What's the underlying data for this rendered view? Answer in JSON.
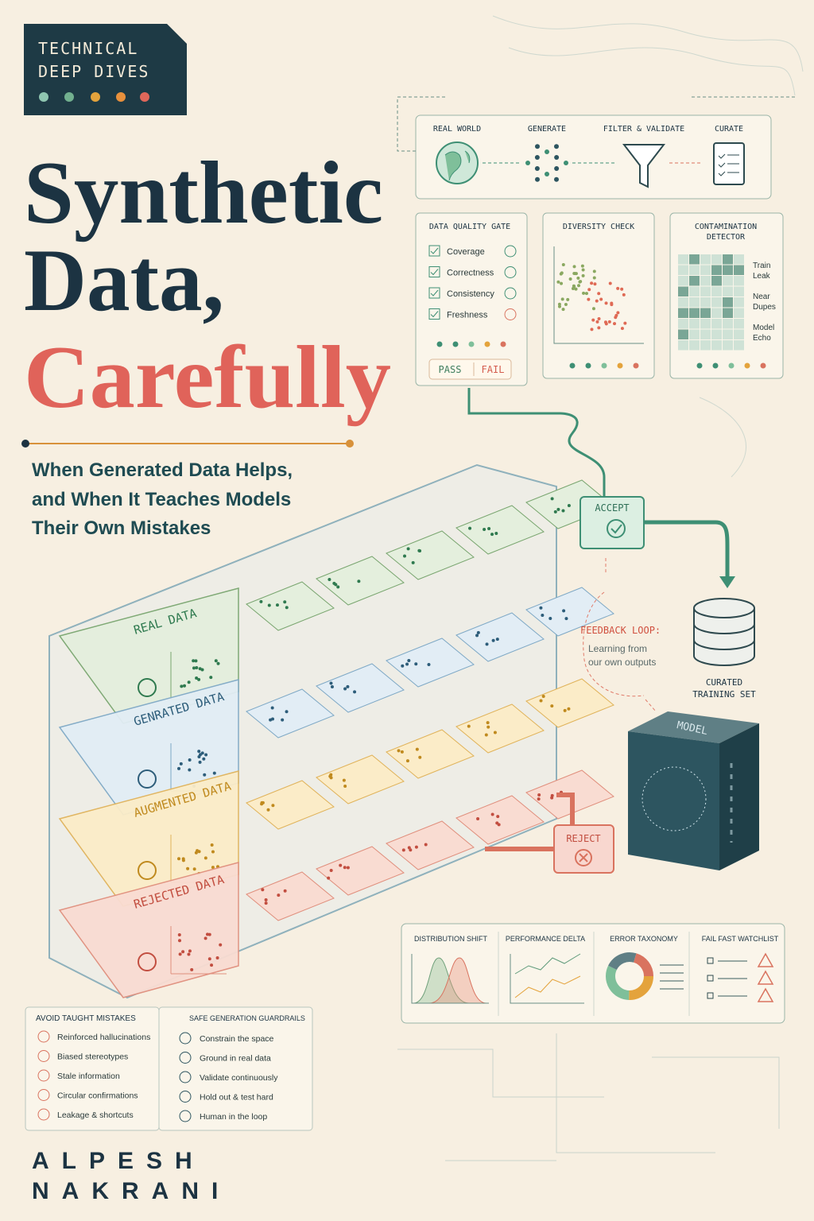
{
  "badge": {
    "lines": [
      "TECHNICAL",
      "DEEP DIVES"
    ]
  },
  "title": {
    "lines": [
      "Synthetic",
      "Data,",
      "Carefully"
    ]
  },
  "subtitle": [
    "When Generated Data Helps,",
    "and When It Teaches Models",
    "Their Own Mistakes"
  ],
  "pipeline": [
    "REAL WORLD",
    "GENERATE",
    "FILTER & VALIDATE",
    "CURATE"
  ],
  "quality_gate": {
    "title": "DATA QUALITY GATE",
    "items": [
      "Coverage",
      "Correctness",
      "Consistency",
      "Freshness"
    ],
    "pass": "PASS",
    "fail": "FAIL"
  },
  "diversity_check": {
    "title": "DIVERSITY CHECK"
  },
  "contamination": {
    "title": [
      "CONTAMINATION",
      "DETECTOR"
    ],
    "labels": [
      [
        "Train",
        "Leak"
      ],
      [
        "Near",
        "Dupes"
      ],
      [
        "Model",
        "Echo"
      ]
    ]
  },
  "shelves": [
    "REAL DATA",
    "GENRATED DATA",
    "AUGMENTED DATA",
    "REJECTED DATA"
  ],
  "accept": "ACCEPT",
  "reject": "REJECT",
  "feedback": {
    "title": "FEEDBACK LOOP:",
    "lines": [
      "Learning from",
      "our own outputs"
    ]
  },
  "curated": [
    "CURATED",
    "TRAINING SET"
  ],
  "model": "MODEL",
  "monitors": [
    "DISTRIBUTION SHIFT",
    "PERFORMANCE DELTA",
    "ERROR TAXONOMY",
    "FAIL FAST WATCHLIST"
  ],
  "avoid": {
    "title": "AVOID TAUGHT MISTAKES",
    "items": [
      "Reinforced hallucinations",
      "Biased stereotypes",
      "Stale information",
      "Circular confirmations",
      "Leakage & shortcuts"
    ]
  },
  "guardrails": {
    "title": "SAFE GENERATION GUARDRAILS",
    "items": [
      "Constrain the space",
      "Ground in real data",
      "Validate continuously",
      "Hold out & test hard",
      "Human in the loop"
    ]
  },
  "author": [
    "ALPESH",
    "NAKRANI"
  ]
}
